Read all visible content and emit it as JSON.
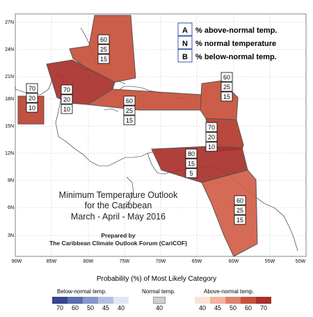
{
  "map": {
    "lat_ticks": [
      "3N",
      "6N",
      "9N",
      "12N",
      "15N",
      "18N",
      "21N",
      "24N",
      "27N"
    ],
    "lon_ticks": [
      "90W",
      "85W",
      "80W",
      "75W",
      "70W",
      "65W",
      "60W",
      "55W",
      "50W"
    ],
    "extent": {
      "lon_west": -90,
      "lon_east": -50,
      "lat_south": 0,
      "lat_north": 28
    }
  },
  "category_key": [
    {
      "code": "A",
      "text": "% above-normal temp."
    },
    {
      "code": "N",
      "text": "% normal temperature"
    },
    {
      "code": "B",
      "text": "% below-normal temp."
    }
  ],
  "regions": [
    {
      "id": "bahamas",
      "values": [
        "60",
        "25",
        "15"
      ],
      "color": "#c8503a"
    },
    {
      "id": "cuba-jamaica",
      "values": [
        "70",
        "20",
        "10"
      ],
      "color": "#a9302a"
    },
    {
      "id": "belize-yucatan",
      "values": [
        "70",
        "20",
        "10"
      ],
      "color": "#bd4232"
    },
    {
      "id": "greater-antilles",
      "values": [
        "60",
        "25",
        "15"
      ],
      "color": "#c8503a"
    },
    {
      "id": "leeward-islands",
      "values": [
        "60",
        "25",
        "15"
      ],
      "color": "#c8503a"
    },
    {
      "id": "windward-islands",
      "values": [
        "70",
        "20",
        "10"
      ],
      "color": "#b33a2e"
    },
    {
      "id": "abc-islands",
      "values": [
        "80",
        "15",
        "5"
      ],
      "color": "#a9302a"
    },
    {
      "id": "guianas",
      "values": [
        "60",
        "25",
        "15"
      ],
      "color": "#d15e48"
    }
  ],
  "title": {
    "line1": "Minimum Temperature Outlook",
    "line2": "for the Caribbean",
    "line3": "March - April - May 2016",
    "prepared1": "Prepared by",
    "prepared2": "The Caribbean Climate Outlook Forum (CariCOF)"
  },
  "legend": {
    "title": "Probability (%) of Most Likely Category",
    "below_label": "Below-normal temp.",
    "normal_label": "Normal temp.",
    "above_label": "Above-normal temp.",
    "below_values": [
      "70",
      "60",
      "50",
      "45",
      "40"
    ],
    "normal_value": "40",
    "above_values": [
      "40",
      "45",
      "50",
      "60",
      "70"
    ],
    "below_colors": [
      "#35458f",
      "#5a6db0",
      "#8796cc",
      "#b4bfe0",
      "#e2e6f3"
    ],
    "normal_color": "#cfcfcf",
    "above_colors": [
      "#fbe3d8",
      "#f3b49f",
      "#e1816a",
      "#c8503a",
      "#a9302a"
    ]
  }
}
